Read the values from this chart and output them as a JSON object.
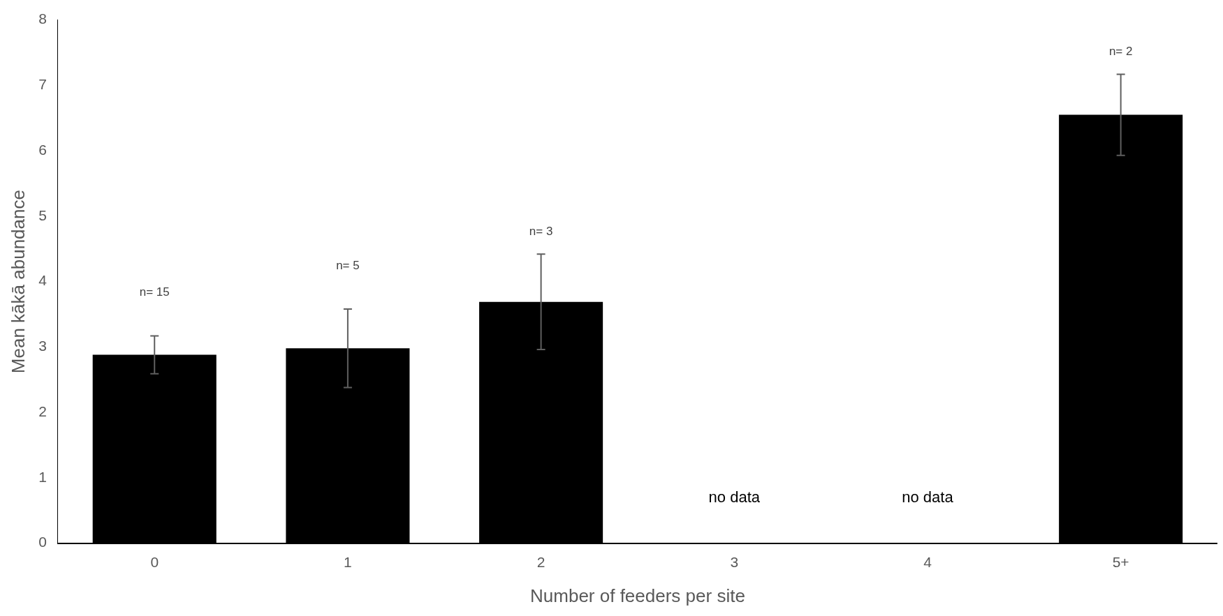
{
  "chart_data": {
    "type": "bar",
    "xlabel": "Number of feeders per site",
    "ylabel": "Mean kākā abundance",
    "categories": [
      "0",
      "1",
      "2",
      "3",
      "4",
      "5+"
    ],
    "values": [
      2.88,
      2.98,
      3.69,
      null,
      null,
      6.55
    ],
    "errors": [
      0.29,
      0.6,
      0.73,
      null,
      null,
      0.62
    ],
    "color": "#000000",
    "ylim": [
      0,
      8
    ],
    "yticks": [
      0,
      1,
      2,
      3,
      4,
      5,
      6,
      7,
      8
    ],
    "grid": false,
    "legend": false,
    "annotations": [
      "n= 15",
      "n= 5",
      "n= 3",
      "no data",
      "no data",
      "n= 2"
    ]
  }
}
